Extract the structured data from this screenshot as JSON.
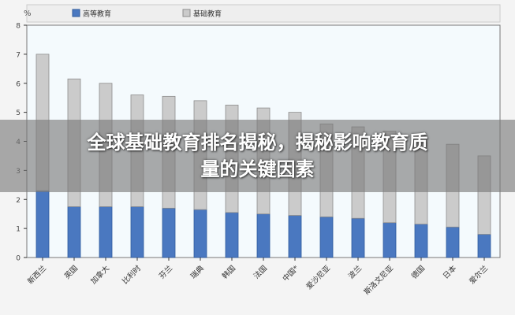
{
  "overlay": {
    "headline_line1": "全球基础教育排名揭秘，揭秘影响教育质",
    "headline_line2": "量的关键因素"
  },
  "colors": {
    "higher": "#4a78c0",
    "higher_stroke": "#2f5a9c",
    "basic": "#cbcbcb",
    "basic_stroke": "#8e8e8e",
    "plot_bg": "#f4fafd",
    "axis": "#333333"
  },
  "chart_data": {
    "type": "bar",
    "stacked": true,
    "unit_label": "%",
    "categories": [
      "新西兰",
      "英国",
      "加拿大",
      "比利时",
      "芬兰",
      "瑞典",
      "韩国",
      "法国",
      "中国*",
      "爱沙尼亚",
      "波兰",
      "斯洛文尼亚",
      "德国",
      "日本",
      "爱尔兰"
    ],
    "series": [
      {
        "name": "高等教育",
        "values": [
          2.3,
          1.75,
          1.75,
          1.75,
          1.7,
          1.65,
          1.55,
          1.5,
          1.45,
          1.4,
          1.35,
          1.2,
          1.15,
          1.05,
          0.8
        ]
      },
      {
        "name": "基础教育",
        "values": [
          4.7,
          4.4,
          4.25,
          3.85,
          3.85,
          3.75,
          3.7,
          3.65,
          3.55,
          3.2,
          3.15,
          3.15,
          3.05,
          2.85,
          2.7
        ]
      }
    ],
    "ylim": [
      0,
      8
    ],
    "yticks": [
      0,
      1,
      2,
      3,
      4,
      5,
      6,
      7,
      8
    ],
    "legend_position": "top",
    "grid": false
  }
}
